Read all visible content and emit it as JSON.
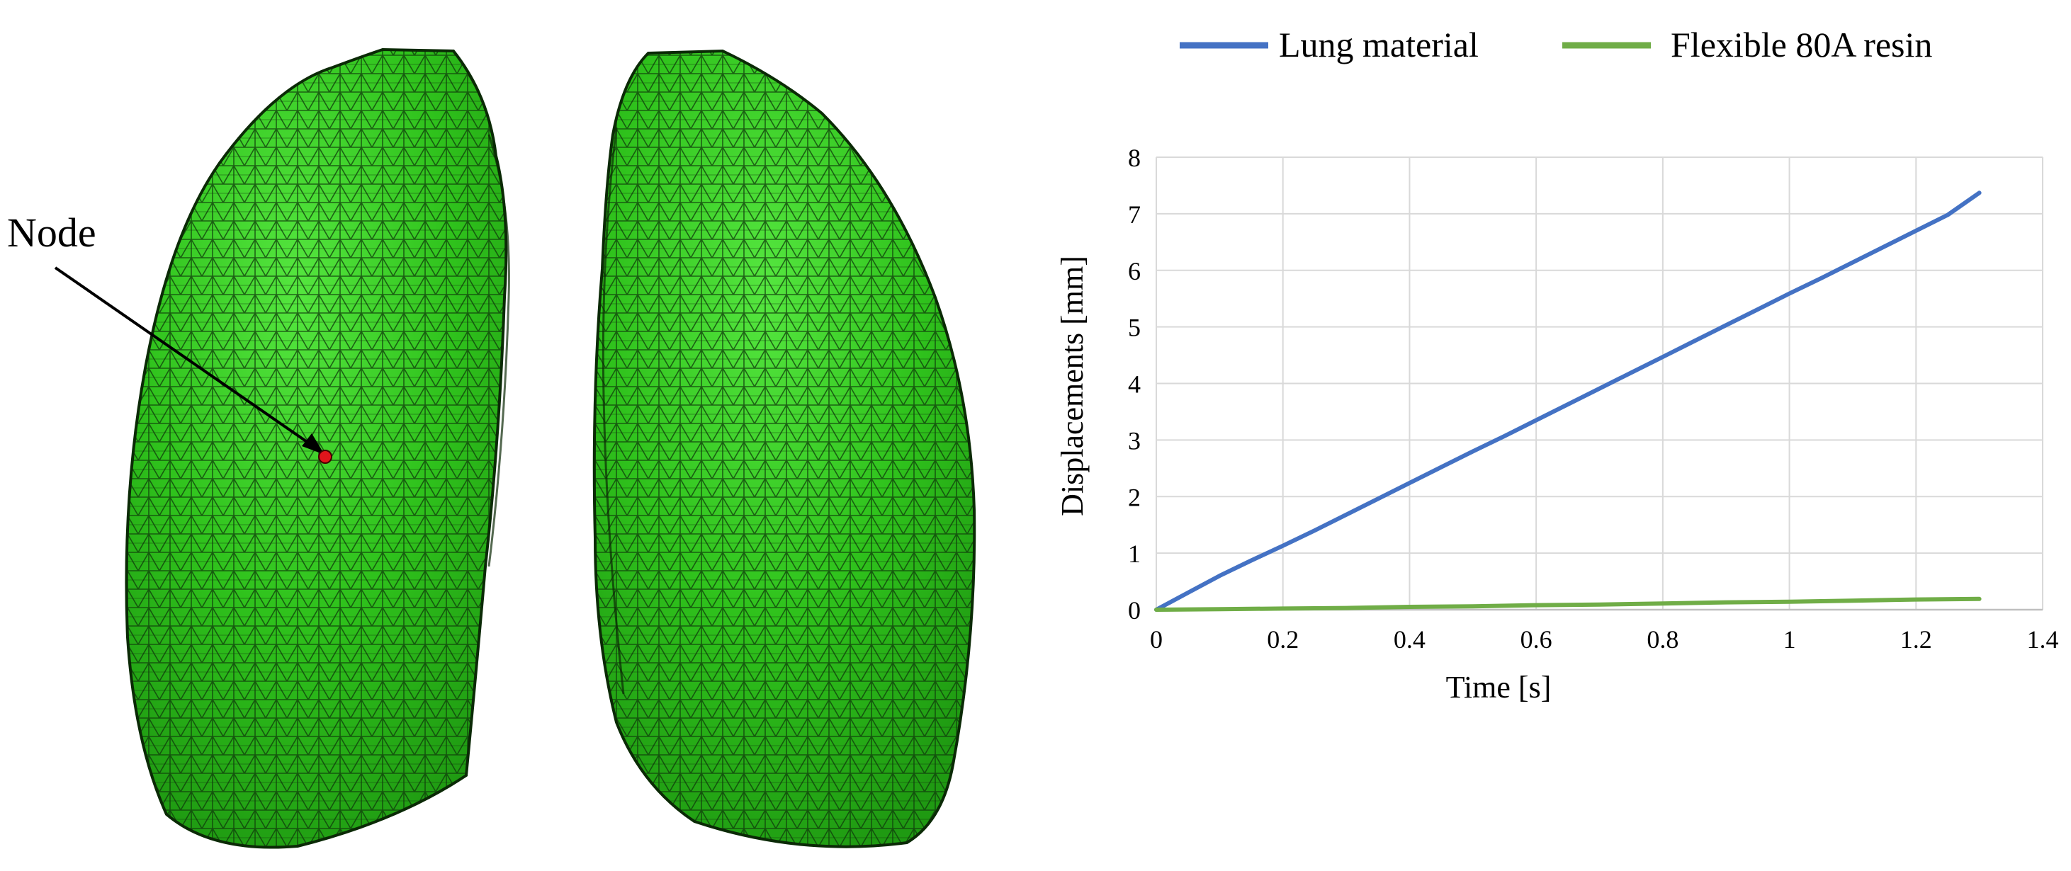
{
  "figure": {
    "node_label": "Node",
    "colors": {
      "mesh_fill": "#2fc21c",
      "mesh_fill_light": "#4fe23a",
      "mesh_fill_dark": "#1f9a12",
      "mesh_lines": "#0f3a0a",
      "outline": "#0b2a06",
      "node_marker": "#e0151b",
      "lung_series": "#4472c4",
      "resin_series": "#70ad47",
      "grid": "#d9d9d9",
      "axis_text": "#404040"
    },
    "icons": {
      "left_lung": "left-lung-mesh-icon",
      "right_lung": "right-lung-mesh-icon"
    }
  },
  "chart_data": {
    "type": "line",
    "title": "",
    "xlabel": "Time [s]",
    "ylabel": "Displacements [mm]",
    "xlim": [
      0,
      1.4
    ],
    "ylim": [
      0,
      8
    ],
    "xticks": [
      0,
      0.2,
      0.4,
      0.6,
      0.8,
      1,
      1.2,
      1.4
    ],
    "yticks": [
      0,
      1,
      2,
      3,
      4,
      5,
      6,
      7,
      8
    ],
    "xtick_labels": [
      "0",
      "0.2",
      "0.4",
      "0.6",
      "0.8",
      "1",
      "1.2",
      "1.4"
    ],
    "ytick_labels": [
      "0",
      "1",
      "2",
      "3",
      "4",
      "5",
      "6",
      "7",
      "8"
    ],
    "grid": true,
    "legend_position": "top",
    "series": [
      {
        "name": "Lung material",
        "color": "#4472c4",
        "x": [
          0,
          0.05,
          0.1,
          0.15,
          0.2,
          0.25,
          0.3,
          0.35,
          0.4,
          0.45,
          0.5,
          0.55,
          0.6,
          0.65,
          0.7,
          0.75,
          0.8,
          0.85,
          0.9,
          0.95,
          1.0,
          1.05,
          1.1,
          1.15,
          1.2,
          1.25,
          1.3
        ],
        "y": [
          0.0,
          0.3,
          0.6,
          0.87,
          1.13,
          1.4,
          1.68,
          1.96,
          2.24,
          2.52,
          2.8,
          3.07,
          3.35,
          3.63,
          3.91,
          4.19,
          4.47,
          4.75,
          5.03,
          5.31,
          5.59,
          5.86,
          6.14,
          6.42,
          6.7,
          6.98,
          7.37
        ]
      },
      {
        "name": "Flexible 80A resin",
        "color": "#70ad47",
        "x": [
          0,
          0.1,
          0.2,
          0.3,
          0.4,
          0.5,
          0.6,
          0.7,
          0.8,
          0.9,
          1.0,
          1.1,
          1.2,
          1.3
        ],
        "y": [
          0.0,
          0.01,
          0.02,
          0.03,
          0.05,
          0.06,
          0.08,
          0.09,
          0.11,
          0.13,
          0.14,
          0.16,
          0.18,
          0.19
        ]
      }
    ]
  }
}
